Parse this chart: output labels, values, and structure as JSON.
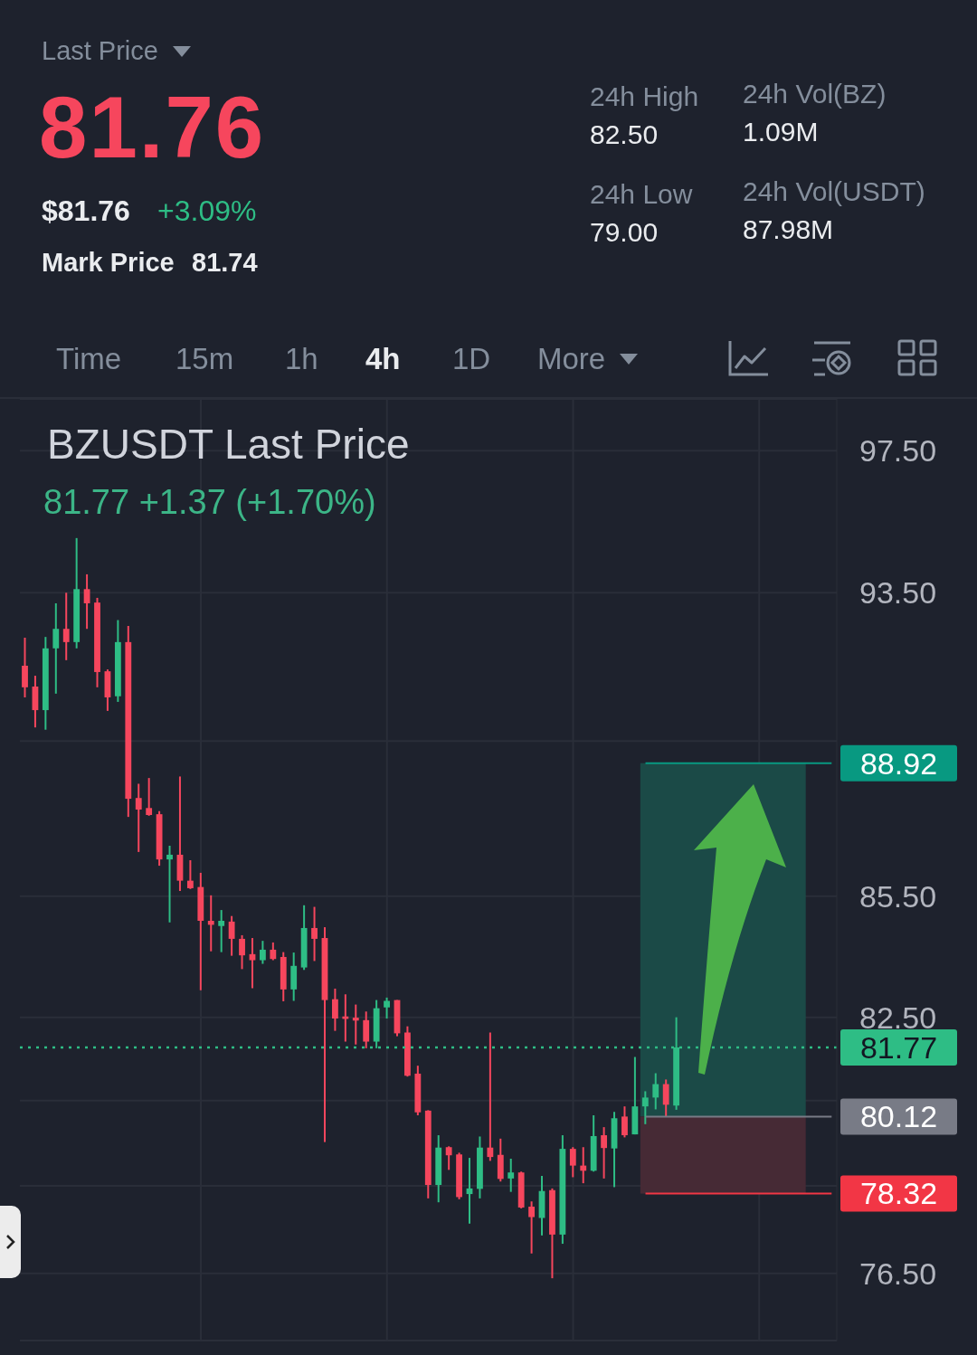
{
  "chart_data": [
    {
      "type": "other",
      "annotations": [
        "Last Price",
        "81.76",
        "$81.76",
        "+3.09%",
        "Mark Price",
        "81.74",
        "24h High",
        "82.50",
        "24h Vol(BZ)",
        "1.09M",
        "24h Low",
        "79.00",
        "24h Vol(USDT)",
        "87.98M",
        "Time",
        "15m",
        "1h",
        "4h",
        "1D",
        "More"
      ]
    },
    {
      "type": "candlestick",
      "title": "BZUSDT Last Price",
      "subtitle": "81.77 +1.37 (+1.70%)",
      "categories": [
        null,
        null,
        null,
        null,
        null,
        null,
        null,
        null,
        null,
        null,
        null,
        null,
        null,
        null,
        null,
        null,
        null,
        null,
        null,
        null,
        null,
        null,
        null,
        null,
        null,
        null,
        null,
        null,
        null,
        null,
        null,
        null,
        null,
        null,
        null,
        null,
        null,
        null,
        null,
        null,
        null,
        null,
        null,
        null,
        null,
        null,
        null,
        null,
        null,
        null,
        null,
        null,
        null,
        null,
        null,
        null,
        null,
        null,
        null,
        null,
        null,
        null,
        null,
        null,
        null,
        null,
        null,
        null,
        null,
        null,
        null,
        null,
        null,
        null,
        null,
        null,
        null,
        null,
        null
      ],
      "ohlc": [
        [
          91.51,
          92.27,
          90.66,
          90.93
        ],
        [
          90.95,
          91.24,
          89.86,
          90.32
        ],
        [
          90.32,
          92.29,
          89.8,
          91.98
        ],
        [
          91.98,
          93.21,
          90.76,
          92.51
        ],
        [
          92.51,
          93.5,
          91.66,
          92.15
        ],
        [
          92.15,
          95.02,
          91.98,
          93.6
        ],
        [
          93.6,
          94.01,
          92.51,
          93.21
        ],
        [
          93.23,
          93.36,
          90.93,
          91.34
        ],
        [
          91.36,
          91.41,
          90.3,
          90.66
        ],
        [
          90.69,
          92.75,
          90.54,
          92.15
        ],
        [
          92.15,
          92.59,
          87.52,
          87.99
        ],
        [
          88.01,
          88.38,
          86.62,
          87.71
        ],
        [
          87.75,
          88.53,
          87.55,
          87.57
        ],
        [
          87.59,
          87.67,
          86.27,
          86.43
        ],
        [
          86.43,
          86.78,
          84.84,
          86.55
        ],
        [
          86.55,
          88.57,
          85.63,
          85.89
        ],
        [
          85.89,
          86.41,
          85.68,
          85.7
        ],
        [
          85.73,
          86.09,
          83.16,
          84.88
        ],
        [
          84.88,
          85.52,
          84.12,
          84.78
        ],
        [
          84.75,
          85.15,
          84.1,
          84.88
        ],
        [
          84.86,
          85.0,
          84.01,
          84.43
        ],
        [
          84.43,
          84.52,
          83.68,
          84.02
        ],
        [
          84.05,
          84.45,
          83.21,
          83.9
        ],
        [
          83.9,
          84.38,
          83.81,
          84.16
        ],
        [
          84.16,
          84.34,
          83.9,
          83.93
        ],
        [
          83.98,
          84.1,
          82.89,
          83.18
        ],
        [
          83.18,
          84.09,
          82.9,
          83.76
        ],
        [
          83.72,
          85.27,
          83.66,
          84.7
        ],
        [
          84.7,
          85.23,
          83.88,
          84.43
        ],
        [
          84.45,
          84.72,
          79.52,
          82.92
        ],
        [
          82.94,
          83.2,
          82.17,
          82.47
        ],
        [
          82.52,
          83.06,
          81.91,
          82.46
        ],
        [
          82.49,
          82.81,
          81.84,
          82.42
        ],
        [
          82.43,
          82.64,
          81.75,
          81.91
        ],
        [
          81.91,
          82.92,
          81.75,
          82.72
        ],
        [
          82.74,
          82.98,
          82.47,
          82.9
        ],
        [
          82.92,
          82.92,
          82.04,
          82.11
        ],
        [
          82.13,
          82.28,
          81.07,
          81.09
        ],
        [
          81.14,
          81.33,
          80.15,
          80.22
        ],
        [
          80.26,
          80.27,
          78.21,
          78.52
        ],
        [
          78.52,
          79.68,
          78.12,
          79.39
        ],
        [
          79.4,
          79.42,
          78.87,
          79.21
        ],
        [
          79.23,
          79.27,
          78.19,
          78.24
        ],
        [
          78.31,
          79.15,
          77.63,
          78.44
        ],
        [
          78.43,
          79.65,
          78.21,
          79.39
        ],
        [
          79.39,
          82.13,
          79.08,
          79.17
        ],
        [
          79.22,
          79.6,
          78.6,
          78.66
        ],
        [
          78.67,
          79.13,
          78.36,
          78.81
        ],
        [
          78.81,
          78.83,
          77.98,
          78.0
        ],
        [
          78.02,
          78.14,
          76.95,
          77.78
        ],
        [
          77.76,
          78.73,
          77.36,
          78.38
        ],
        [
          78.4,
          78.44,
          76.39,
          77.38
        ],
        [
          77.38,
          79.68,
          77.17,
          79.36
        ],
        [
          79.36,
          79.4,
          78.7,
          78.97
        ],
        [
          78.97,
          79.4,
          78.56,
          78.85
        ],
        [
          78.85,
          80.15,
          78.83,
          79.66
        ],
        [
          79.68,
          79.87,
          78.67,
          79.38
        ],
        [
          79.37,
          80.23,
          78.47,
          80.08
        ],
        [
          80.12,
          80.36,
          79.63,
          79.68
        ],
        [
          79.7,
          81.54,
          79.7,
          80.36
        ],
        [
          80.36,
          80.72,
          79.94,
          80.57
        ],
        [
          80.57,
          81.15,
          80.29,
          80.89
        ],
        [
          80.89,
          81.0,
          80.12,
          80.4
        ],
        [
          80.38,
          82.5,
          80.28,
          81.77
        ],
        null,
        null,
        null,
        null,
        null,
        null,
        null,
        null,
        null,
        null,
        null,
        null,
        null,
        null,
        null
      ],
      "colors": [
        "#f6465d",
        "#f6465d",
        "#2ebd85",
        "#2ebd85",
        "#f6465d",
        "#2ebd85",
        "#f6465d",
        "#f6465d",
        "#f6465d",
        "#2ebd85",
        "#f6465d",
        "#f6465d",
        "#f6465d",
        "#f6465d",
        "#2ebd85",
        "#f6465d",
        "#f6465d",
        "#f6465d",
        "#f6465d",
        "#2ebd85",
        "#f6465d",
        "#f6465d",
        "#f6465d",
        "#2ebd85",
        "#f6465d",
        "#f6465d",
        "#2ebd85",
        "#2ebd85",
        "#f6465d",
        "#f6465d",
        "#f6465d",
        "#f6465d",
        "#f6465d",
        "#f6465d",
        "#2ebd85",
        "#2ebd85",
        "#f6465d",
        "#f6465d",
        "#f6465d",
        "#f6465d",
        "#2ebd85",
        "#f6465d",
        "#f6465d",
        "#2ebd85",
        "#2ebd85",
        "#f6465d",
        "#f6465d",
        "#2ebd85",
        "#f6465d",
        "#f6465d",
        "#2ebd85",
        "#f6465d",
        "#2ebd85",
        "#f6465d",
        "#f6465d",
        "#2ebd85",
        "#f6465d",
        "#2ebd85",
        "#f6465d",
        "#2ebd85",
        "#2ebd85",
        "#2ebd85",
        "#f6465d",
        "#2ebd85",
        null,
        null,
        null,
        null,
        null,
        null,
        null,
        null,
        null,
        null,
        null,
        null,
        null,
        null,
        null
      ],
      "log": "y",
      "ylim": [
        75,
        99
      ],
      "yticks": [
        {
          "value": 76.5,
          "label": "76.50"
        },
        {
          "value": 78.5,
          "label": null
        },
        {
          "value": 80.5,
          "label": null
        },
        {
          "value": 82.5,
          "label": "82.50"
        },
        {
          "value": 85.5,
          "label": "85.50"
        },
        {
          "value": 89.5,
          "label": null
        },
        {
          "value": 93.5,
          "label": "93.50"
        },
        {
          "value": 97.5,
          "label": "97.50"
        }
      ],
      "grid": true,
      "tick_labels": "y",
      "bands": [
        {
          "axis": "y",
          "from": 80.12,
          "to": 88.92,
          "color": "#1b4a47"
        },
        {
          "axis": "y",
          "from": 78.32,
          "to": 80.12,
          "color": "#462a35"
        }
      ],
      "ref_lines": [
        {
          "axis": "y",
          "value": 88.92,
          "label": "88.92",
          "color": "#089981"
        },
        {
          "axis": "y",
          "value": 81.77,
          "label": "81.77",
          "color": "#2ebd85",
          "line_style": "dotted"
        },
        {
          "axis": "y",
          "value": 80.12,
          "label": "80.12",
          "color": "#787b86"
        },
        {
          "axis": "y",
          "value": 78.32,
          "label": "78.32",
          "color": "#f23645"
        }
      ]
    }
  ]
}
